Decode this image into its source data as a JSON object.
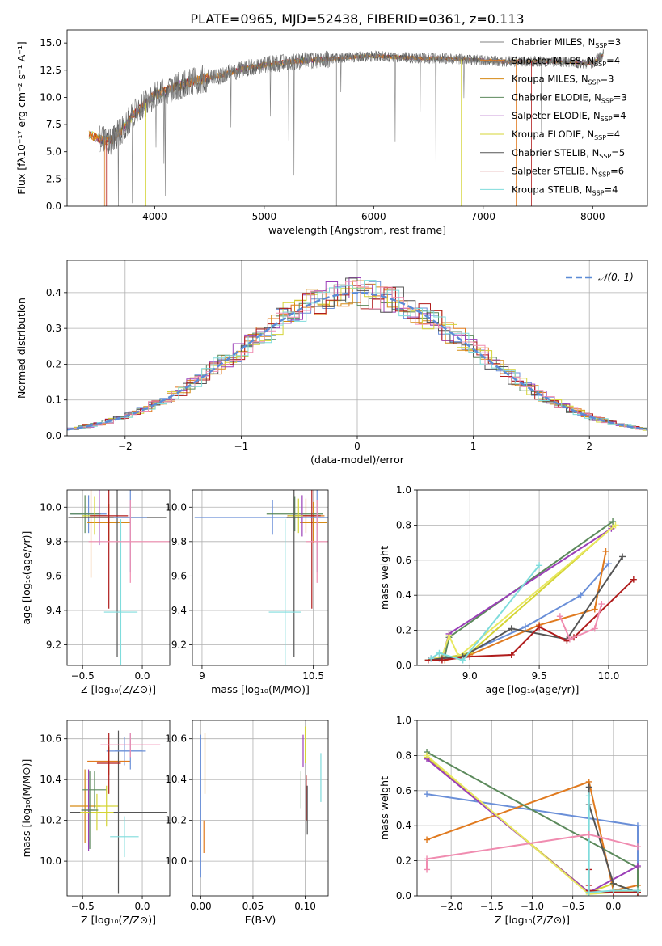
{
  "title": "PLATE=0965, MJD=52438, FIBERID=0361, z=0.113",
  "series_colors": [
    "#808080",
    "#e07a1f",
    "#d68a14",
    "#5c8a5c",
    "#9b3fb8",
    "#d4d435",
    "#555555",
    "#b01c1c",
    "#7fdcdc"
  ],
  "chart_data": [
    {
      "id": "spectrum",
      "type": "line",
      "xlabel": "wavelength [Angstrom, rest frame]",
      "ylabel": "Flux [fλ10⁻¹⁷ erg cm⁻² s⁻¹ A⁻¹]",
      "xlim": [
        3200,
        8500
      ],
      "ylim": [
        0,
        16.2
      ],
      "xticks": [
        "4000",
        "5000",
        "6000",
        "7000",
        "8000"
      ],
      "yticks": [
        "0.0",
        "2.5",
        "5.0",
        "7.5",
        "10.0",
        "12.5",
        "15.0"
      ],
      "legend_position": "upper-right",
      "legend": [
        {
          "label": "Chabrier MILES, N",
          "sub": "SSP",
          "val": "=3"
        },
        {
          "label": "Salpeter MILES, N",
          "sub": "SSP",
          "val": "=4"
        },
        {
          "label": "Kroupa MILES, N",
          "sub": "SSP",
          "val": "=3"
        },
        {
          "label": "Chabrier ELODIE, N",
          "sub": "SSP",
          "val": "=3"
        },
        {
          "label": "Salpeter ELODIE, N",
          "sub": "SSP",
          "val": "=4"
        },
        {
          "label": "Kroupa ELODIE, N",
          "sub": "SSP",
          "val": "=4"
        },
        {
          "label": "Chabrier STELIB, N",
          "sub": "SSP",
          "val": "=5"
        },
        {
          "label": "Salpeter STELIB, N",
          "sub": "SSP",
          "val": "=6"
        },
        {
          "label": "Kroupa STELIB, N",
          "sub": "SSP",
          "val": "=4"
        }
      ],
      "continuum": {
        "x": [
          3400,
          3500,
          3600,
          3700,
          3800,
          3900,
          4000,
          4200,
          4400,
          4600,
          4800,
          5000,
          5200,
          5400,
          5600,
          5800,
          6000,
          6200,
          6400,
          6600,
          6800,
          7000,
          7200,
          7400,
          7600,
          7800,
          8000,
          8100
        ],
        "y": [
          6.5,
          6.2,
          6.0,
          7.0,
          8.3,
          9.3,
          10.2,
          11.0,
          11.6,
          12.0,
          12.6,
          13.0,
          13.2,
          13.4,
          13.5,
          13.7,
          13.8,
          13.7,
          13.6,
          13.6,
          13.5,
          13.4,
          13.3,
          13.3,
          13.3,
          13.2,
          13.1,
          14.0
        ]
      }
    },
    {
      "id": "residuals",
      "type": "histogram",
      "xlabel": "(data-model)/error",
      "ylabel": "Normed distribution",
      "xlim": [
        -2.5,
        2.5
      ],
      "ylim": [
        0,
        0.49
      ],
      "xticks": [
        "−2",
        "−1",
        "0",
        "1",
        "2"
      ],
      "yticks": [
        "0.0",
        "0.1",
        "0.2",
        "0.3",
        "0.4"
      ],
      "legend": "𝒩(0, 1)",
      "legend_position": "upper-right",
      "gaussian": {
        "mean": 0,
        "sigma": 1
      }
    },
    {
      "id": "age-vs-metallicity",
      "type": "scatter",
      "xlabel": "Z [log₁₀(Z/Z⊙)]",
      "ylabel": "age  [log₁₀(age/yr)]",
      "xlim": [
        -0.63,
        0.23
      ],
      "ylim": [
        9.08,
        10.1
      ],
      "xticks": [
        "−0.5",
        "0.0"
      ],
      "yticks": [
        "9.2",
        "9.4",
        "9.6",
        "9.8",
        "10.0"
      ],
      "points": [
        {
          "x": -0.45,
          "y": 9.96,
          "xerr": 0.15,
          "yerr": 0.11
        },
        {
          "x": -0.43,
          "y": 9.94,
          "xerr": 0.14,
          "yerr": 0.35
        },
        {
          "x": -0.28,
          "y": 9.91,
          "xerr": 0.18,
          "yerr": 0.11
        },
        {
          "x": -0.48,
          "y": 9.96,
          "xerr": 0.13,
          "yerr": 0.11
        },
        {
          "x": -0.36,
          "y": 9.95,
          "xerr": 0.06,
          "yerr": 0.17
        },
        {
          "x": -0.4,
          "y": 9.95,
          "xerr": 0.1,
          "yerr": 0.11
        },
        {
          "x": -0.21,
          "y": 9.94,
          "xerr": 0.41,
          "yerr": 0.81
        },
        {
          "x": -0.28,
          "y": 9.95,
          "xerr": 0.16,
          "yerr": 0.54
        },
        {
          "x": -0.18,
          "y": 9.39,
          "xerr": 0.14,
          "yerr": 0.54
        },
        {
          "x": -0.1,
          "y": 9.94,
          "xerr": 0.14,
          "yerr": 0.32
        },
        {
          "x": -0.1,
          "y": 9.8,
          "xerr": 0.35,
          "yerr": 0.24
        }
      ]
    },
    {
      "id": "age-vs-mass",
      "type": "scatter",
      "xlabel": "mass [log₁₀(M/M⊙)]",
      "ylabel": "",
      "xlim": [
        8.87,
        10.7
      ],
      "ylim": [
        9.08,
        10.1
      ],
      "xticks": [
        "9",
        "10.5"
      ],
      "yticks": [
        "9.2",
        "9.4",
        "9.6",
        "9.8",
        "10.0"
      ],
      "points": [
        {
          "x": 9.95,
          "y": 9.94,
          "xerr": 1.05,
          "yerr": 0.1
        },
        {
          "x": 10.4,
          "y": 9.95,
          "xerr": 0.25,
          "yerr": 0.1
        },
        {
          "x": 10.5,
          "y": 9.91,
          "xerr": 0.18,
          "yerr": 0.12
        },
        {
          "x": 10.25,
          "y": 9.96,
          "xerr": 0.38,
          "yerr": 0.1
        },
        {
          "x": 10.35,
          "y": 9.95,
          "xerr": 0.1,
          "yerr": 0.12
        },
        {
          "x": 10.3,
          "y": 9.95,
          "xerr": 0.14,
          "yerr": 0.1
        },
        {
          "x": 10.24,
          "y": 9.94,
          "xerr": 0.1,
          "yerr": 0.81
        },
        {
          "x": 10.48,
          "y": 9.95,
          "xerr": 0.12,
          "yerr": 0.54
        },
        {
          "x": 10.12,
          "y": 9.39,
          "xerr": 0.22,
          "yerr": 0.54
        },
        {
          "x": 10.55,
          "y": 9.94,
          "xerr": 0.1,
          "yerr": 0.32
        },
        {
          "x": 10.55,
          "y": 9.8,
          "xerr": 0.15,
          "yerr": 0.24
        }
      ]
    },
    {
      "id": "mass-weight-vs-age",
      "type": "line",
      "xlabel": "age  [log₁₀(age/yr)]",
      "ylabel": "mass weight",
      "xlim": [
        8.62,
        10.28
      ],
      "ylim": [
        0,
        1.0
      ],
      "xticks": [
        "9.0",
        "9.5",
        "10.0"
      ],
      "yticks": [
        "0.0",
        "0.2",
        "0.4",
        "0.6",
        "0.8",
        "1.0"
      ],
      "series": [
        {
          "x": [
            8.7,
            8.78,
            8.95,
            9.4,
            9.8,
            10.0
          ],
          "y": [
            0.03,
            0.04,
            0.06,
            0.22,
            0.4,
            0.58
          ]
        },
        {
          "x": [
            8.7,
            8.82,
            9.0,
            9.5,
            9.9,
            9.98
          ],
          "y": [
            0.03,
            0.03,
            0.06,
            0.23,
            0.32,
            0.65
          ]
        },
        {
          "x": [
            8.7,
            8.8,
            9.0,
            10.03
          ],
          "y": [
            0.03,
            0.04,
            0.07,
            0.79
          ]
        },
        {
          "x": [
            8.7,
            8.82,
            8.85,
            10.03
          ],
          "y": [
            0.03,
            0.05,
            0.16,
            0.82
          ]
        },
        {
          "x": [
            8.72,
            8.8,
            8.85,
            10.02
          ],
          "y": [
            0.04,
            0.04,
            0.18,
            0.78
          ]
        },
        {
          "x": [
            8.7,
            8.8,
            8.85,
            8.92,
            10.05
          ],
          "y": [
            0.03,
            0.05,
            0.17,
            0.05,
            0.8
          ]
        },
        {
          "x": [
            8.7,
            8.8,
            8.95,
            9.3,
            9.7,
            10.1
          ],
          "y": [
            0.03,
            0.04,
            0.05,
            0.21,
            0.15,
            0.62
          ]
        },
        {
          "x": [
            8.7,
            8.8,
            9.0,
            9.3,
            9.5,
            9.7,
            9.75,
            10.18
          ],
          "y": [
            0.03,
            0.03,
            0.05,
            0.06,
            0.22,
            0.14,
            0.16,
            0.49
          ]
        },
        {
          "x": [
            8.72,
            8.78,
            8.95,
            9.5
          ],
          "y": [
            0.04,
            0.07,
            0.03,
            0.57
          ]
        },
        {
          "x": [
            9.65,
            9.72,
            9.9,
            9.95
          ],
          "y": [
            0.28,
            0.15,
            0.21,
            0.35
          ]
        }
      ]
    },
    {
      "id": "mass-vs-metallicity",
      "type": "scatter",
      "xlabel": "Z [log₁₀(Z/Z⊙)]",
      "ylabel": "mass [log₁₀(M/M⊙)]",
      "xlim": [
        -0.63,
        0.23
      ],
      "ylim": [
        9.83,
        10.69
      ],
      "xticks": [
        "−0.5",
        "0.0"
      ],
      "yticks": [
        "10.0",
        "10.2",
        "10.4",
        "10.6"
      ],
      "points": [
        {
          "x": -0.15,
          "y": 10.54,
          "xerr": 0.15,
          "yerr": 0.07
        },
        {
          "x": -0.28,
          "y": 10.49,
          "xerr": 0.18,
          "yerr": 0.07
        },
        {
          "x": -0.48,
          "y": 10.27,
          "xerr": 0.13,
          "yerr": 0.18
        },
        {
          "x": -0.4,
          "y": 10.35,
          "xerr": 0.1,
          "yerr": 0.09
        },
        {
          "x": -0.45,
          "y": 10.25,
          "xerr": 0.06,
          "yerr": 0.2
        },
        {
          "x": -0.3,
          "y": 10.27,
          "xerr": 0.1,
          "yerr": 0.1
        },
        {
          "x": -0.2,
          "y": 10.24,
          "xerr": 0.41,
          "yerr": 0.4
        },
        {
          "x": -0.28,
          "y": 10.48,
          "xerr": 0.1,
          "yerr": 0.15
        },
        {
          "x": -0.15,
          "y": 10.12,
          "xerr": 0.12,
          "yerr": 0.1
        },
        {
          "x": -0.1,
          "y": 10.54,
          "xerr": 0.13,
          "yerr": 0.09
        },
        {
          "x": -0.1,
          "y": 10.57,
          "xerr": 0.25,
          "yerr": 0.06
        },
        {
          "x": -0.38,
          "y": 10.24,
          "xerr": 0.14,
          "yerr": 0.09
        },
        {
          "x": -0.44,
          "y": 10.25,
          "xerr": 0.07,
          "yerr": 0.19
        }
      ]
    },
    {
      "id": "mass-vs-ebv",
      "type": "scatter",
      "xlabel": "E(B-V)",
      "ylabel": "",
      "xlim": [
        -0.008,
        0.122
      ],
      "ylim": [
        9.83,
        10.69
      ],
      "xticks": [
        "0.00",
        "0.05",
        "0.10"
      ],
      "yticks": [
        "10.0",
        "10.2",
        "10.4",
        "10.6"
      ],
      "points": [
        {
          "x": 0.0,
          "y": 10.27,
          "xerr": 0,
          "yerr": 0.35
        },
        {
          "x": 0.003,
          "y": 10.12,
          "xerr": 0,
          "yerr": 0.08
        },
        {
          "x": 0.004,
          "y": 10.48,
          "xerr": 0,
          "yerr": 0.15
        },
        {
          "x": 0.096,
          "y": 10.35,
          "xerr": 0,
          "yerr": 0.09
        },
        {
          "x": 0.098,
          "y": 10.54,
          "xerr": 0,
          "yerr": 0.08
        },
        {
          "x": 0.1,
          "y": 10.57,
          "xerr": 0,
          "yerr": 0.09
        },
        {
          "x": 0.102,
          "y": 10.25,
          "xerr": 0,
          "yerr": 0.12
        },
        {
          "x": 0.101,
          "y": 10.31,
          "xerr": 0,
          "yerr": 0.11
        },
        {
          "x": 0.115,
          "y": 10.41,
          "xerr": 0,
          "yerr": 0.12
        }
      ]
    },
    {
      "id": "mass-weight-vs-metallicity",
      "type": "line",
      "xlabel": "Z [log₁₀(Z/Z⊙)]",
      "ylabel": "mass weight",
      "xlim": [
        -2.42,
        0.42
      ],
      "ylim": [
        0,
        1.0
      ],
      "xticks": [
        "−2.0",
        "−1.5",
        "−1.0",
        "−0.5",
        "0.0"
      ],
      "yticks": [
        "0.0",
        "0.2",
        "0.4",
        "0.6",
        "0.8",
        "1.0"
      ],
      "series": [
        {
          "x": [
            -2.3,
            0.3,
            0.3
          ],
          "y": [
            0.58,
            0.4,
            0.02
          ]
        },
        {
          "x": [
            -2.3,
            -0.3,
            0.0,
            0.3,
            0.3
          ],
          "y": [
            0.32,
            0.65,
            0.03,
            0.06,
            0.16
          ]
        },
        {
          "x": [
            -2.3,
            -0.3,
            0.0,
            0.3
          ],
          "y": [
            0.79,
            0.02,
            0.07,
            0.02
          ]
        },
        {
          "x": [
            -2.3,
            0.3,
            0.3
          ],
          "y": [
            0.82,
            0.16,
            0.03
          ]
        },
        {
          "x": [
            -2.3,
            -0.3,
            0.3
          ],
          "y": [
            0.78,
            0.02,
            0.17
          ]
        },
        {
          "x": [
            -2.3,
            -0.3,
            0.3
          ],
          "y": [
            0.8,
            0.01,
            0.03
          ]
        },
        {
          "x": [
            -0.3,
            -0.3,
            0.0,
            0.3
          ],
          "y": [
            0.62,
            0.52,
            0.07,
            0.02
          ]
        },
        {
          "x": [
            -0.3,
            -0.3,
            -0.3,
            0.0,
            0.3
          ],
          "y": [
            0.15,
            0.06,
            0.03,
            0.02,
            0.02
          ]
        },
        {
          "x": [
            -0.3,
            -0.3,
            0.0,
            0.3
          ],
          "y": [
            0.57,
            0.02,
            0.03,
            0.03
          ]
        },
        {
          "x": [
            -2.3,
            -2.3,
            -0.3,
            0.3
          ],
          "y": [
            0.15,
            0.21,
            0.35,
            0.28
          ]
        }
      ]
    }
  ]
}
